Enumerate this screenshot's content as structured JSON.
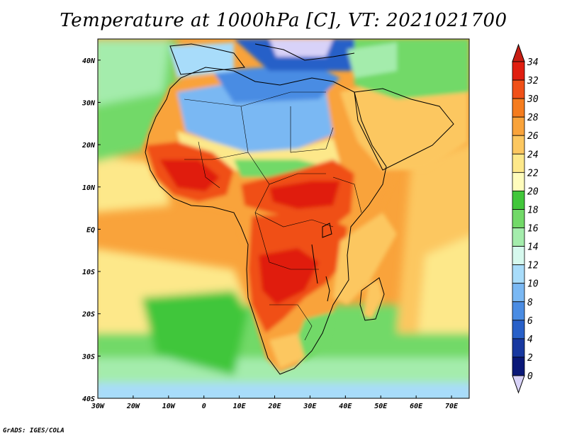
{
  "title": "Temperature at 1000hPa [C], VT: 2021021700",
  "credit": "GrADS: IGES/COLA",
  "map": {
    "lon_range": [
      -30,
      75
    ],
    "lat_range": [
      -40,
      45
    ],
    "lon_ticks": [
      {
        "value": -30,
        "label": "30W"
      },
      {
        "value": -20,
        "label": "20W"
      },
      {
        "value": -10,
        "label": "10W"
      },
      {
        "value": 0,
        "label": "0"
      },
      {
        "value": 10,
        "label": "10E"
      },
      {
        "value": 20,
        "label": "20E"
      },
      {
        "value": 30,
        "label": "30E"
      },
      {
        "value": 40,
        "label": "40E"
      },
      {
        "value": 50,
        "label": "50E"
      },
      {
        "value": 60,
        "label": "60E"
      },
      {
        "value": 70,
        "label": "70E"
      }
    ],
    "lat_ticks": [
      {
        "value": 40,
        "label": "40N"
      },
      {
        "value": 30,
        "label": "30N"
      },
      {
        "value": 20,
        "label": "20N"
      },
      {
        "value": 10,
        "label": "10N"
      },
      {
        "value": 0,
        "label": "EQ"
      },
      {
        "value": -10,
        "label": "10S"
      },
      {
        "value": -20,
        "label": "20S"
      },
      {
        "value": -30,
        "label": "30S"
      },
      {
        "value": -40,
        "label": "40S"
      }
    ]
  },
  "colorbar": {
    "labels": [
      "34",
      "32",
      "30",
      "28",
      "26",
      "24",
      "22",
      "20",
      "18",
      "16",
      "14",
      "12",
      "10",
      "8",
      "6",
      "4",
      "2",
      "0"
    ],
    "colors": [
      "#e01e10",
      "#f05018",
      "#f57c1e",
      "#f9a33b",
      "#fcc760",
      "#fde88a",
      "#fffcbc",
      "#41c63a",
      "#72d968",
      "#a4ecac",
      "#d6f9ee",
      "#a8dcfa",
      "#7ab8f3",
      "#4a8ce3",
      "#2860c8",
      "#1838a0",
      "#0a1878"
    ],
    "over_color": "#c81e14",
    "under_color": "#d8d2f8"
  }
}
